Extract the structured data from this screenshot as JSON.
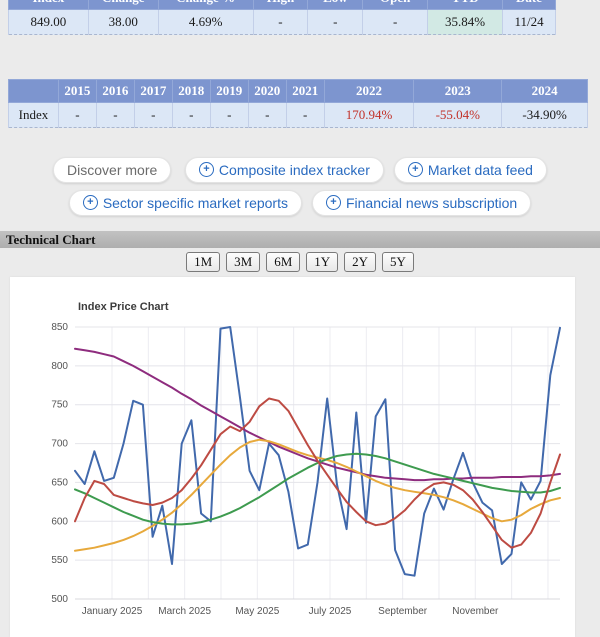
{
  "summary_table": {
    "headers": [
      "Index",
      "Change",
      "Change %",
      "High",
      "Low",
      "Open",
      "YTD",
      "Date"
    ],
    "values": [
      "849.00",
      "38.00",
      "4.69%",
      "-",
      "-",
      "-",
      "35.84%",
      "11/24"
    ],
    "highlight_col": 6
  },
  "yearly_table": {
    "row_label": "Index",
    "years": [
      "2015",
      "2016",
      "2017",
      "2018",
      "2019",
      "2020",
      "2021",
      "2022",
      "2023",
      "2024"
    ],
    "values": [
      "-",
      "-",
      "-",
      "-",
      "-",
      "-",
      "-",
      "170.94%",
      "-55.04%",
      "-34.90%"
    ],
    "negative_indices": [
      8,
      9
    ]
  },
  "discover": {
    "more_label": "Discover more",
    "links": [
      "Composite index tracker",
      "Market data feed",
      "Sector specific market reports",
      "Financial news subscription"
    ]
  },
  "technical_section": {
    "title": "Technical Chart",
    "ranges": [
      "1M",
      "3M",
      "6M",
      "1Y",
      "2Y",
      "5Y"
    ]
  },
  "chart_data": {
    "type": "line",
    "title": "Index Price Chart",
    "xlabel": "",
    "ylabel": "",
    "ylim": [
      500,
      850
    ],
    "yticks": [
      500,
      550,
      600,
      650,
      700,
      750,
      800,
      850
    ],
    "x_ticklabels": [
      "January 2025",
      "March 2025",
      "May 2025",
      "July 2025",
      "September",
      "November"
    ],
    "grid": true,
    "legend": "none",
    "series": [
      {
        "name": "blue",
        "color": "#4169ac",
        "values": [
          665,
          648,
          690,
          652,
          656,
          700,
          755,
          750,
          580,
          620,
          545,
          700,
          730,
          610,
          600,
          848,
          850,
          760,
          665,
          640,
          700,
          685,
          638,
          565,
          570,
          650,
          758,
          648,
          590,
          740,
          598,
          735,
          757,
          563,
          532,
          530,
          610,
          642,
          615,
          654,
          688,
          650,
          624,
          614,
          545,
          558,
          650,
          628,
          652,
          788,
          849
        ]
      },
      {
        "name": "purple",
        "color": "#8e2c7e",
        "values": [
          822,
          820,
          818,
          815,
          812,
          806,
          800,
          793,
          786,
          779,
          772,
          764,
          757,
          749,
          742,
          735,
          728,
          721,
          714,
          708,
          702,
          696,
          691,
          686,
          681,
          677,
          673,
          669,
          666,
          663,
          660,
          658,
          656,
          655,
          654,
          653,
          653,
          654,
          654,
          655,
          655,
          656,
          656,
          656,
          657,
          657,
          657,
          658,
          658,
          659,
          661
        ]
      },
      {
        "name": "orange",
        "color": "#e7a93c",
        "values": [
          562,
          564,
          566,
          569,
          572,
          576,
          581,
          587,
          594,
          602,
          611,
          622,
          634,
          647,
          660,
          673,
          685,
          695,
          702,
          705,
          703,
          699,
          694,
          689,
          685,
          682,
          679,
          675,
          670,
          664,
          658,
          652,
          647,
          643,
          640,
          638,
          636,
          634,
          631,
          627,
          622,
          616,
          610,
          604,
          600,
          602,
          608,
          616,
          622,
          627,
          630
        ]
      },
      {
        "name": "green",
        "color": "#3e9b4f",
        "values": [
          641,
          636,
          630,
          624,
          618,
          612,
          607,
          602,
          599,
          597,
          596,
          596,
          597,
          599,
          602,
          606,
          611,
          617,
          624,
          631,
          639,
          647,
          655,
          662,
          669,
          675,
          680,
          684,
          686,
          687,
          686,
          684,
          681,
          677,
          673,
          669,
          665,
          661,
          658,
          655,
          652,
          649,
          646,
          643,
          641,
          639,
          638,
          637,
          637,
          639,
          643
        ]
      },
      {
        "name": "red",
        "color": "#bd4b43",
        "values": [
          600,
          630,
          652,
          648,
          634,
          630,
          626,
          623,
          621,
          624,
          630,
          640,
          655,
          672,
          692,
          712,
          722,
          716,
          728,
          748,
          758,
          755,
          742,
          720,
          698,
          678,
          660,
          642,
          625,
          612,
          600,
          595,
          597,
          604,
          614,
          628,
          640,
          648,
          650,
          647,
          640,
          628,
          612,
          594,
          576,
          566,
          570,
          585,
          610,
          650,
          686
        ]
      }
    ]
  }
}
